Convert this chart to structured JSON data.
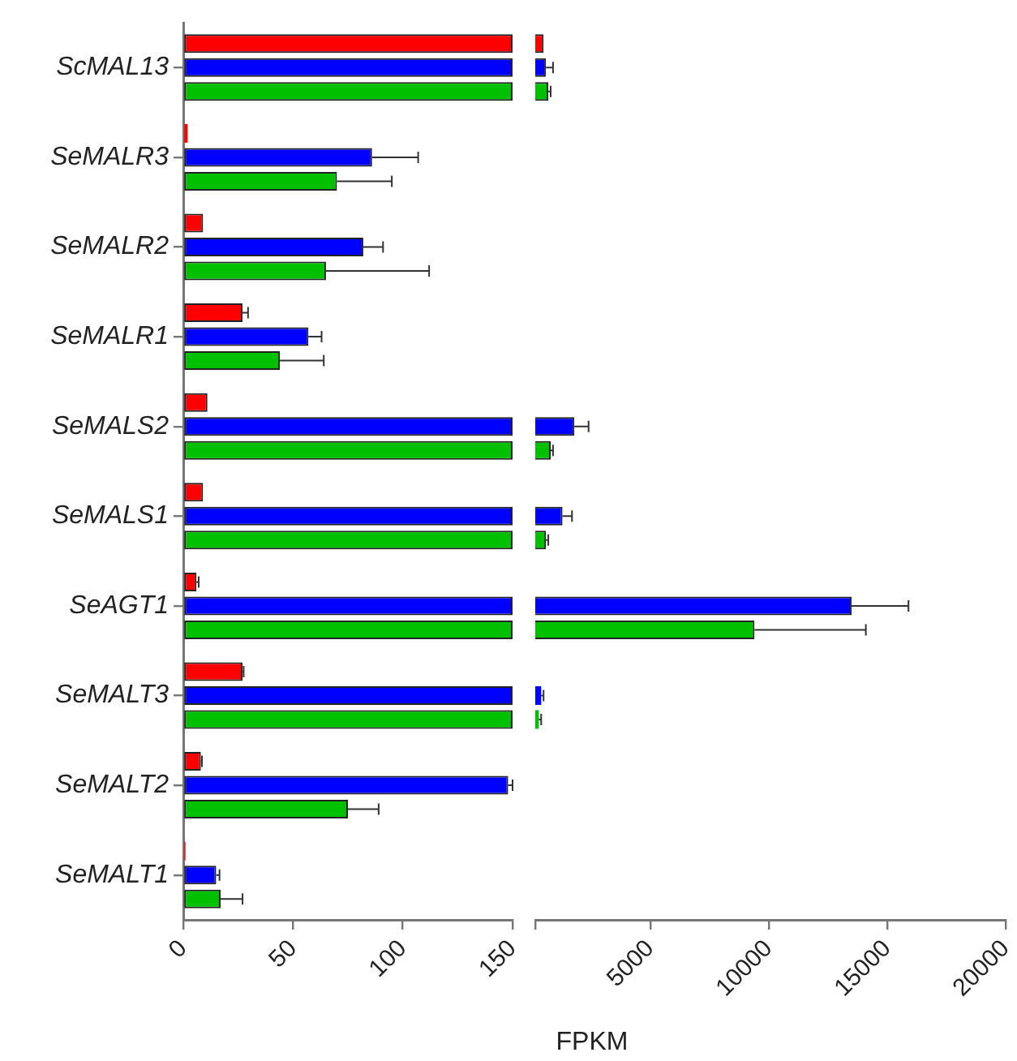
{
  "chart_data": [
    {
      "type": "bar",
      "orientation": "horizontal",
      "xlabel": "FPKM",
      "categories": [
        "ScMAL13",
        "SeMALR3",
        "SeMALR2",
        "SeMALR1",
        "SeMALS2",
        "SeMALS1",
        "SeAGT1",
        "SeMALT3",
        "SeMALT2",
        "SeMALT1"
      ],
      "series": [
        {
          "color": "#ff0000",
          "values": [
            150,
            2,
            9,
            27,
            11,
            9,
            6,
            27,
            8,
            1
          ],
          "errors": [
            null,
            null,
            null,
            2.5,
            null,
            null,
            1,
            0.5,
            0.5,
            null
          ]
        },
        {
          "color": "#0000ff",
          "values": [
            150,
            86,
            82,
            57,
            150,
            150,
            150,
            150,
            148,
            15
          ],
          "errors": [
            null,
            21,
            9,
            6,
            null,
            null,
            null,
            null,
            2,
            1.5
          ]
        },
        {
          "color": "#00c000",
          "values": [
            150,
            70,
            65,
            44,
            150,
            150,
            150,
            150,
            75,
            17
          ],
          "errors": [
            null,
            25,
            47,
            20,
            null,
            null,
            null,
            null,
            14,
            10
          ]
        }
      ],
      "xlim": [
        0,
        150
      ],
      "xticks": [
        0,
        50,
        100,
        150
      ],
      "grid": false,
      "legend": false
    },
    {
      "type": "bar",
      "orientation": "horizontal",
      "categories": [
        null,
        null,
        null,
        null,
        null,
        null,
        null,
        null,
        null,
        null
      ],
      "series": [
        {
          "color": "#ff0000",
          "values": [
            500,
            null,
            null,
            null,
            null,
            null,
            null,
            null,
            null,
            null
          ]
        },
        {
          "color": "#0000ff",
          "values": [
            600,
            null,
            null,
            null,
            1800,
            1300,
            13500,
            400,
            null,
            null
          ],
          "errors": [
            300,
            null,
            null,
            null,
            600,
            400,
            2400,
            100,
            null,
            null
          ]
        },
        {
          "color": "#00c000",
          "values": [
            700,
            null,
            null,
            null,
            800,
            600,
            9400,
            300,
            null,
            null
          ],
          "errors": [
            100,
            null,
            null,
            null,
            100,
            100,
            4700,
            100,
            null,
            null
          ]
        }
      ],
      "xlim": [
        150,
        20000
      ],
      "xticks": [
        {
          "value": 150,
          "label": null
        },
        5000,
        10000,
        15000,
        20000
      ],
      "tick_labels": "x",
      "grid": false,
      "legend": false
    }
  ]
}
